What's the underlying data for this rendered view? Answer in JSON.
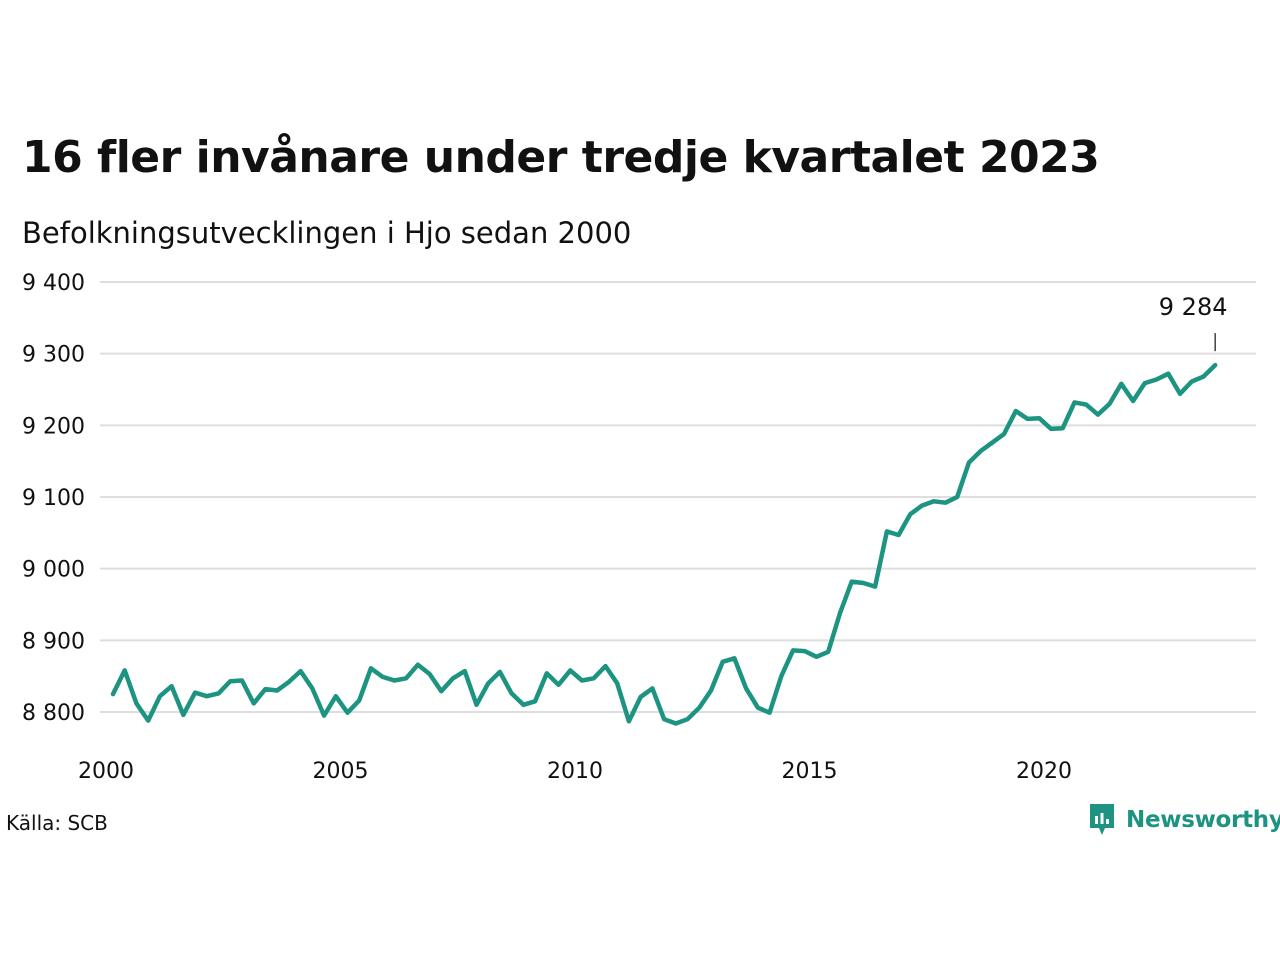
{
  "header": {
    "title": "16 fler invånare under tredje kvartalet 2023",
    "subtitle": "Befolkningsutvecklingen i Hjo sedan 2000"
  },
  "footer": {
    "source": "Källa: SCB",
    "brand": "Newsworthy",
    "brand_icon": "newsworthy-logo-icon"
  },
  "colors": {
    "line": "#1d9481",
    "grid": "#dedede",
    "text": "#111111"
  },
  "chart_data": {
    "type": "line",
    "title": "16 fler invånare under tredje kvartalet 2023",
    "subtitle": "Befolkningsutvecklingen i Hjo sedan 2000",
    "xlabel": "",
    "ylabel": "",
    "xlim": [
      "2000-01",
      "2024-06"
    ],
    "ylim": [
      8750,
      9400
    ],
    "y_ticks": [
      8800,
      8900,
      9000,
      9100,
      9200,
      9300,
      9400
    ],
    "y_tick_labels": [
      "8 800",
      "8 900",
      "9 000",
      "9 100",
      "9 200",
      "9 300",
      "9 400"
    ],
    "x_ticks": [
      "2000",
      "2005",
      "2010",
      "2015",
      "2020"
    ],
    "grid": "horizontal",
    "end_label": "9 284",
    "series": [
      {
        "x": [
          "2000-Q1",
          "2000-Q2",
          "2000-Q3",
          "2000-Q4",
          "2001-Q1",
          "2001-Q2",
          "2001-Q3",
          "2001-Q4",
          "2002-Q1",
          "2002-Q2",
          "2002-Q3",
          "2002-Q4",
          "2003-Q1",
          "2003-Q2",
          "2003-Q3",
          "2003-Q4",
          "2004-Q1",
          "2004-Q2",
          "2004-Q3",
          "2004-Q4",
          "2005-Q1",
          "2005-Q2",
          "2005-Q3",
          "2005-Q4",
          "2006-Q1",
          "2006-Q2",
          "2006-Q3",
          "2006-Q4",
          "2007-Q1",
          "2007-Q2",
          "2007-Q3",
          "2007-Q4",
          "2008-Q1",
          "2008-Q2",
          "2008-Q3",
          "2008-Q4",
          "2009-Q1",
          "2009-Q2",
          "2009-Q3",
          "2009-Q4",
          "2010-Q1",
          "2010-Q2",
          "2010-Q3",
          "2010-Q4",
          "2011-Q1",
          "2011-Q2",
          "2011-Q3",
          "2011-Q4",
          "2012-Q1",
          "2012-Q2",
          "2012-Q3",
          "2012-Q4",
          "2013-Q1",
          "2013-Q2",
          "2013-Q3",
          "2013-Q4",
          "2014-Q1",
          "2014-Q2",
          "2014-Q3",
          "2014-Q4",
          "2015-Q1",
          "2015-Q2",
          "2015-Q3",
          "2015-Q4",
          "2016-Q1",
          "2016-Q2",
          "2016-Q3",
          "2016-Q4",
          "2017-Q1",
          "2017-Q2",
          "2017-Q3",
          "2017-Q4",
          "2018-Q1",
          "2018-Q2",
          "2018-Q3",
          "2018-Q4",
          "2019-Q1",
          "2019-Q2",
          "2019-Q3",
          "2019-Q4",
          "2020-Q1",
          "2020-Q2",
          "2020-Q3",
          "2020-Q4",
          "2021-Q1",
          "2021-Q2",
          "2021-Q3",
          "2021-Q4",
          "2022-Q1",
          "2022-Q2",
          "2022-Q3",
          "2022-Q4",
          "2023-Q1",
          "2023-Q2",
          "2023-Q3"
        ],
        "values": [
          8825,
          8858,
          8812,
          8788,
          8822,
          8836,
          8796,
          8827,
          8822,
          8826,
          8843,
          8844,
          8812,
          8832,
          8830,
          8842,
          8857,
          8833,
          8795,
          8822,
          8799,
          8816,
          8861,
          8849,
          8844,
          8847,
          8866,
          8853,
          8829,
          8847,
          8857,
          8810,
          8840,
          8856,
          8826,
          8810,
          8815,
          8854,
          8838,
          8858,
          8844,
          8847,
          8864,
          8840,
          8787,
          8821,
          8833,
          8790,
          8784,
          8790,
          8806,
          8830,
          8870,
          8875,
          8833,
          8806,
          8799,
          8850,
          8886,
          8885,
          8877,
          8884,
          8938,
          8982,
          8980,
          8975,
          9052,
          9047,
          9076,
          9088,
          9094,
          9092,
          9100,
          9148,
          9164,
          9176,
          9188,
          9220,
          9209,
          9210,
          9195,
          9196,
          9232,
          9229,
          9215,
          9230,
          9258,
          9234,
          9259,
          9264,
          9272,
          9244,
          9261,
          9268,
          9284
        ]
      }
    ]
  }
}
